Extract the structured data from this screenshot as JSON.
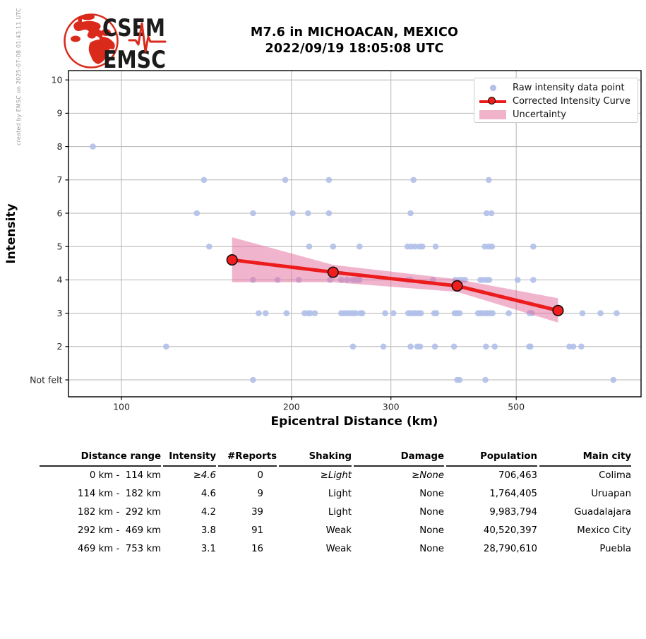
{
  "header": {
    "created_by": "created by EMSC on 2025-07-08 01:43:11 UTC",
    "logo_top": "CSEM",
    "logo_bottom": "EMSC",
    "title_line1": "M7.6 in MICHOACAN, MEXICO",
    "title_line2": "2022/09/19 18:05:08 UTC"
  },
  "chart_data": {
    "type": "scatter",
    "title": "M7.6 in MICHOACAN, MEXICO 2022/09/19 18:05:08 UTC",
    "xlabel": "Epicentral Distance (km)",
    "ylabel": "Intensity",
    "x_scale": "log",
    "x_ticks": [
      100,
      200,
      300,
      500
    ],
    "x_range": [
      80.6,
      832
    ],
    "y_range": [
      0.49,
      10.29
    ],
    "grid": true,
    "legend_position": "upper right",
    "y_ticks": [
      {
        "value": 10,
        "label": "10"
      },
      {
        "value": 9,
        "label": "9"
      },
      {
        "value": 8,
        "label": "8"
      },
      {
        "value": 7,
        "label": "7"
      },
      {
        "value": 6,
        "label": "6"
      },
      {
        "value": 5,
        "label": "5"
      },
      {
        "value": 4,
        "label": "4"
      },
      {
        "value": 3,
        "label": "3"
      },
      {
        "value": 2,
        "label": "2"
      },
      {
        "value": 1,
        "label": "Not felt"
      }
    ],
    "legend": {
      "raw": "Raw intensity data point",
      "curve": "Corrected Intensity Curve",
      "uncertainty": "Uncertainty"
    },
    "raw_points": [
      [
        89,
        8
      ],
      [
        140,
        7
      ],
      [
        195,
        7
      ],
      [
        233,
        7
      ],
      [
        329,
        7
      ],
      [
        447,
        7
      ],
      [
        136,
        6
      ],
      [
        171,
        6
      ],
      [
        201,
        6
      ],
      [
        214,
        6
      ],
      [
        233,
        6
      ],
      [
        325,
        6
      ],
      [
        443,
        6
      ],
      [
        452,
        6
      ],
      [
        143,
        5
      ],
      [
        215,
        5
      ],
      [
        237,
        5
      ],
      [
        264,
        5
      ],
      [
        321,
        5
      ],
      [
        326,
        5
      ],
      [
        331,
        5
      ],
      [
        337,
        5
      ],
      [
        341,
        5
      ],
      [
        360,
        5
      ],
      [
        440,
        5
      ],
      [
        447,
        5
      ],
      [
        453,
        5
      ],
      [
        536,
        5
      ],
      [
        171,
        4
      ],
      [
        189,
        4
      ],
      [
        206,
        4
      ],
      [
        234,
        4
      ],
      [
        245,
        4
      ],
      [
        251,
        4
      ],
      [
        257,
        4
      ],
      [
        261,
        4
      ],
      [
        264,
        4
      ],
      [
        322,
        4
      ],
      [
        325,
        4
      ],
      [
        356,
        4
      ],
      [
        390,
        4
      ],
      [
        396,
        4
      ],
      [
        401,
        4
      ],
      [
        406,
        4
      ],
      [
        432,
        4
      ],
      [
        437,
        4
      ],
      [
        443,
        4
      ],
      [
        448,
        4
      ],
      [
        503,
        4
      ],
      [
        536,
        4
      ],
      [
        175,
        3
      ],
      [
        180,
        3
      ],
      [
        196,
        3
      ],
      [
        211,
        3
      ],
      [
        214,
        3
      ],
      [
        216,
        3
      ],
      [
        220,
        3
      ],
      [
        245,
        3
      ],
      [
        248,
        3
      ],
      [
        251,
        3
      ],
      [
        254,
        3
      ],
      [
        257,
        3
      ],
      [
        260,
        3
      ],
      [
        265,
        3
      ],
      [
        267,
        3
      ],
      [
        293,
        3
      ],
      [
        303,
        3
      ],
      [
        322,
        3
      ],
      [
        325,
        3
      ],
      [
        329,
        3
      ],
      [
        332,
        3
      ],
      [
        336,
        3
      ],
      [
        339,
        3
      ],
      [
        358,
        3
      ],
      [
        361,
        3
      ],
      [
        389,
        3
      ],
      [
        393,
        3
      ],
      [
        397,
        3
      ],
      [
        428,
        3
      ],
      [
        432,
        3
      ],
      [
        436,
        3
      ],
      [
        441,
        3
      ],
      [
        445,
        3
      ],
      [
        450,
        3
      ],
      [
        454,
        3
      ],
      [
        485,
        3
      ],
      [
        528,
        3
      ],
      [
        533,
        3
      ],
      [
        655,
        3
      ],
      [
        705,
        3
      ],
      [
        753,
        3
      ],
      [
        120,
        2
      ],
      [
        257,
        2
      ],
      [
        291,
        2
      ],
      [
        325,
        2
      ],
      [
        334,
        2
      ],
      [
        338,
        2
      ],
      [
        359,
        2
      ],
      [
        388,
        2
      ],
      [
        442,
        2
      ],
      [
        458,
        2
      ],
      [
        527,
        2
      ],
      [
        530,
        2
      ],
      [
        621,
        2
      ],
      [
        631,
        2
      ],
      [
        652,
        2
      ],
      [
        171,
        1
      ],
      [
        393,
        1
      ],
      [
        397,
        1
      ],
      [
        441,
        1
      ],
      [
        743,
        1
      ]
    ],
    "corrected_curve": [
      [
        157,
        4.6
      ],
      [
        237,
        4.23
      ],
      [
        393,
        3.82
      ],
      [
        593,
        3.08
      ]
    ],
    "uncertainty_upper": [
      [
        157,
        5.28
      ],
      [
        237,
        4.45
      ],
      [
        393,
        4.02
      ],
      [
        593,
        3.45
      ]
    ],
    "uncertainty_lower": [
      [
        157,
        3.93
      ],
      [
        237,
        3.93
      ],
      [
        393,
        3.64
      ],
      [
        593,
        2.72
      ]
    ],
    "colors": {
      "raw_point": "#b1c0e9",
      "curve": "#ed1c1c",
      "curve_marker": "#f21d1d",
      "band": "#e36a9c",
      "grid": "#b5b5b5",
      "frame": "#000000",
      "logo_red": "#da2a1c"
    }
  },
  "table": {
    "columns": [
      "Distance range",
      "Intensity",
      "#Reports",
      "Shaking",
      "Damage",
      "Population",
      "Main city"
    ],
    "rows": [
      {
        "cells": [
          "0 km -  114 km",
          "≥4.6",
          "0",
          "≥Light",
          "≥None",
          "706,463",
          "Colima"
        ],
        "italic": true
      },
      {
        "cells": [
          "114 km -  182 km",
          "4.6",
          "9",
          "Light",
          "None",
          "1,764,405",
          "Uruapan"
        ],
        "italic": false
      },
      {
        "cells": [
          "182 km -  292 km",
          "4.2",
          "39",
          "Light",
          "None",
          "9,983,794",
          "Guadalajara"
        ],
        "italic": false
      },
      {
        "cells": [
          "292 km -  469 km",
          "3.8",
          "91",
          "Weak",
          "None",
          "40,520,397",
          "Mexico City"
        ],
        "italic": false
      },
      {
        "cells": [
          "469 km -  753 km",
          "3.1",
          "16",
          "Weak",
          "None",
          "28,790,610",
          "Puebla"
        ],
        "italic": false
      }
    ]
  }
}
